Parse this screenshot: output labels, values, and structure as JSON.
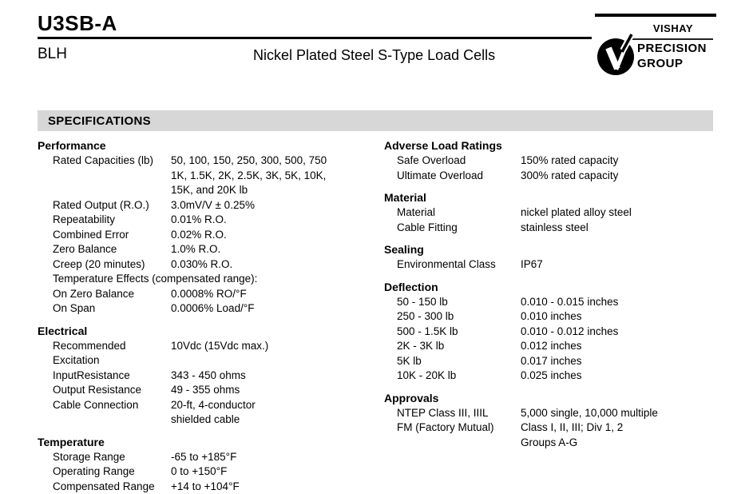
{
  "header": {
    "model": "U3SB-A",
    "brand": "BLH",
    "subtitle": "Nickel Plated Steel S-Type Load Cells"
  },
  "logo": {
    "mark_icon": "vishay-v-icon",
    "line1": "VISHAY",
    "line2": "PRECISION",
    "line3": "GROUP"
  },
  "colors": {
    "spec_bar_background": "#d7d7d7",
    "text": "#000000"
  },
  "specifications": {
    "title": "SPECIFICATIONS",
    "left_sections": [
      {
        "heading": "Performance",
        "rows": [
          {
            "label": "Rated Capacities (lb)",
            "value": [
              "50, 100, 150, 250, 300, 500, 750",
              "1K, 1.5K, 2K, 2.5K, 3K, 5K, 10K,",
              "15K, and 20K lb"
            ]
          },
          {
            "label": "Rated Output (R.O.)",
            "value": [
              "3.0mV/V ± 0.25%"
            ]
          },
          {
            "label": "Repeatability",
            "value": [
              "0.01% R.O."
            ]
          },
          {
            "label": "Combined Error",
            "value": [
              "0.02% R.O."
            ]
          },
          {
            "label": "Zero Balance",
            "value": [
              "1.0% R.O."
            ]
          },
          {
            "label": "Creep (20 minutes)",
            "value": [
              "0.030% R.O."
            ]
          },
          {
            "label": "Temperature Effects (compensated range):",
            "value": [],
            "wide": true
          },
          {
            "label": "On Zero Balance",
            "value": [
              "0.0008% RO/°F"
            ]
          },
          {
            "label": "On Span",
            "value": [
              "0.0006% Load/°F"
            ]
          }
        ]
      },
      {
        "heading": "Electrical",
        "rows": [
          {
            "label": "Recommended Excitation",
            "value": [
              "10Vdc (15Vdc max.)"
            ]
          },
          {
            "label": "InputResistance",
            "value": [
              "343 - 450 ohms"
            ]
          },
          {
            "label": "Output Resistance",
            "value": [
              "49 - 355 ohms"
            ]
          },
          {
            "label": "Cable Connection",
            "value": [
              "20-ft, 4-conductor",
              "shielded cable"
            ]
          }
        ]
      },
      {
        "heading": "Temperature",
        "rows": [
          {
            "label": "Storage Range",
            "value": [
              "-65 to +185°F"
            ]
          },
          {
            "label": "Operating Range",
            "value": [
              "0 to +150°F"
            ]
          },
          {
            "label": "Compensated Range",
            "value": [
              "+14 to +104°F"
            ]
          }
        ]
      }
    ],
    "right_sections": [
      {
        "heading": "Adverse Load Ratings",
        "rows": [
          {
            "label": "Safe Overload",
            "value": [
              "150% rated capacity"
            ]
          },
          {
            "label": "Ultimate Overload",
            "value": [
              "300% rated capacity"
            ]
          }
        ]
      },
      {
        "heading": "Material",
        "rows": [
          {
            "label": "Material",
            "value": [
              "nickel plated alloy steel"
            ]
          },
          {
            "label": "Cable Fitting",
            "value": [
              "stainless steel"
            ]
          }
        ]
      },
      {
        "heading": "Sealing",
        "rows": [
          {
            "label": "Environmental Class",
            "value": [
              "IP67"
            ]
          }
        ]
      },
      {
        "heading": "Deflection",
        "rows": [
          {
            "label": "50 - 150 lb",
            "value": [
              "0.010 - 0.015 inches"
            ]
          },
          {
            "label": "250 - 300 lb",
            "value": [
              "0.010 inches"
            ]
          },
          {
            "label": "500 - 1.5K lb",
            "value": [
              "0.010 - 0.012 inches"
            ]
          },
          {
            "label": "2K - 3K lb",
            "value": [
              "0.012 inches"
            ]
          },
          {
            "label": "5K lb",
            "value": [
              "0.017 inches"
            ]
          },
          {
            "label": "10K - 20K lb",
            "value": [
              "0.025 inches"
            ]
          }
        ]
      },
      {
        "heading": "Approvals",
        "rows": [
          {
            "label": "NTEP Class III, IIIL",
            "value": [
              "5,000 single, 10,000 multiple"
            ]
          },
          {
            "label": "FM (Factory Mutual)",
            "value": [
              "Class I, II, III; Div 1, 2",
              "Groups A-G"
            ]
          }
        ]
      }
    ]
  }
}
